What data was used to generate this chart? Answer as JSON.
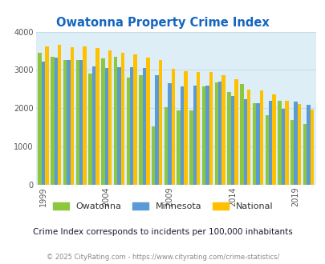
{
  "title": "Owatonna Property Crime Index",
  "subtitle": "Crime Index corresponds to incidents per 100,000 inhabitants",
  "footer": "© 2025 CityRating.com - https://www.cityrating.com/crime-statistics/",
  "years": [
    1999,
    2000,
    2001,
    2002,
    2003,
    2004,
    2005,
    2006,
    2007,
    2008,
    2009,
    2010,
    2011,
    2012,
    2013,
    2014,
    2015,
    2016,
    2017,
    2018,
    2019,
    2020
  ],
  "owatonna": [
    3440,
    3340,
    3260,
    3270,
    2900,
    3310,
    3340,
    2800,
    2870,
    1520,
    2020,
    1940,
    1940,
    2570,
    2680,
    2420,
    2640,
    2130,
    1810,
    2190,
    1700,
    1580
  ],
  "minnesota": [
    3210,
    3320,
    3260,
    3260,
    3100,
    3050,
    3070,
    3070,
    3060,
    2870,
    2650,
    2570,
    2590,
    2590,
    2700,
    2310,
    2230,
    2130,
    2200,
    1990,
    2180,
    2090
  ],
  "national": [
    3620,
    3650,
    3600,
    3620,
    3570,
    3520,
    3450,
    3410,
    3330,
    3260,
    3030,
    2970,
    2940,
    2940,
    2870,
    2750,
    2490,
    2460,
    2360,
    2200,
    2110,
    1960
  ],
  "owatonna_color": "#8dc63f",
  "minnesota_color": "#5b9bd5",
  "national_color": "#ffc000",
  "bg_color": "#ddeef6",
  "ylim": [
    0,
    4000
  ],
  "yticks": [
    0,
    1000,
    2000,
    3000,
    4000
  ],
  "xtick_years": [
    1999,
    2004,
    2009,
    2014,
    2019
  ],
  "title_color": "#1565c0",
  "subtitle_color": "#1a1a2e",
  "footer_color": "#888888",
  "grid_color": "#c8dce8"
}
